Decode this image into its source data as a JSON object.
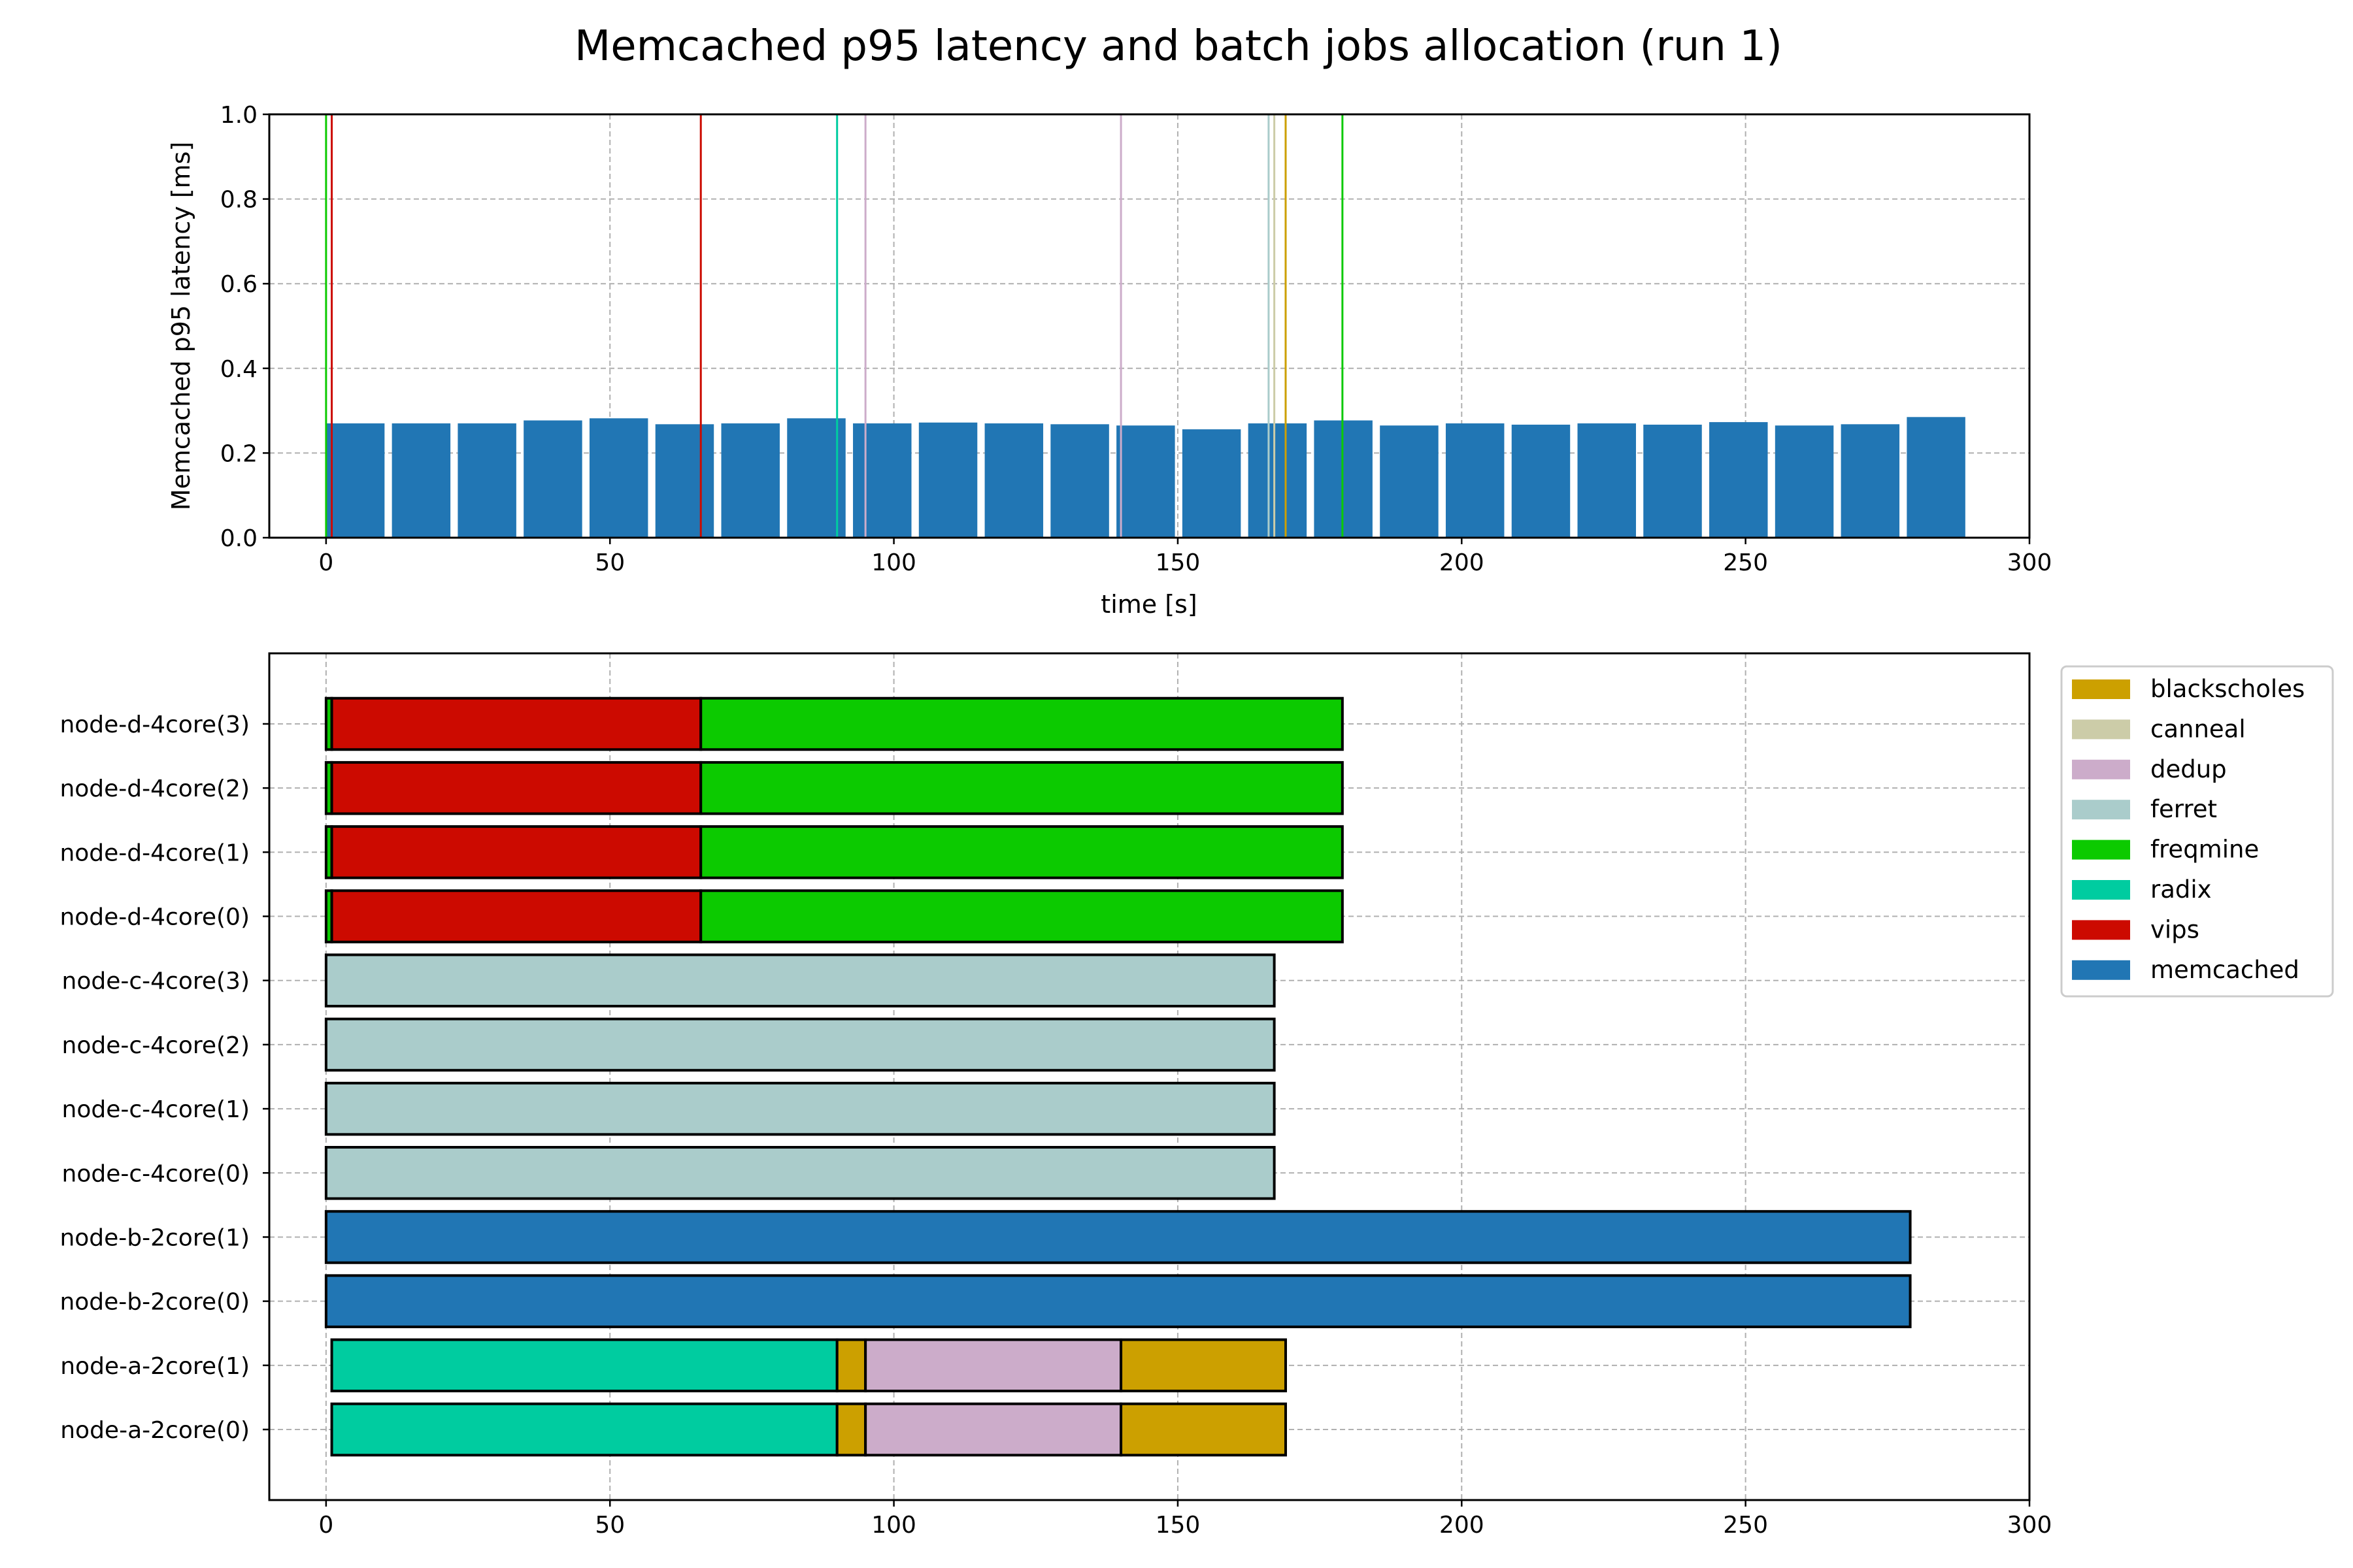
{
  "chart_data": {
    "title": "Memcached p95 latency and batch jobs allocation (run 1)",
    "latency": {
      "type": "bar",
      "xlabel": "time [s]",
      "ylabel": "Memcached p95 latency [ms]",
      "xlim": [
        -10,
        300
      ],
      "ylim": [
        0,
        1.0
      ],
      "xticks": [
        0,
        50,
        100,
        150,
        200,
        250,
        300
      ],
      "yticks": [
        0.0,
        0.2,
        0.4,
        0.6,
        0.8,
        1.0
      ],
      "grid": true,
      "bar_color": "#2176b4",
      "bars": [
        {
          "x": 0,
          "width": 10.3,
          "value": 0.27
        },
        {
          "x": 11.6,
          "width": 10.3,
          "value": 0.27
        },
        {
          "x": 23.2,
          "width": 10.3,
          "value": 0.27
        },
        {
          "x": 34.8,
          "width": 10.3,
          "value": 0.277
        },
        {
          "x": 46.4,
          "width": 10.3,
          "value": 0.282
        },
        {
          "x": 58,
          "width": 10.3,
          "value": 0.268
        },
        {
          "x": 69.6,
          "width": 10.3,
          "value": 0.27
        },
        {
          "x": 81.2,
          "width": 10.3,
          "value": 0.282
        },
        {
          "x": 92.8,
          "width": 10.3,
          "value": 0.27
        },
        {
          "x": 104.4,
          "width": 10.3,
          "value": 0.272
        },
        {
          "x": 116,
          "width": 10.3,
          "value": 0.27
        },
        {
          "x": 127.6,
          "width": 10.3,
          "value": 0.268
        },
        {
          "x": 139.2,
          "width": 10.3,
          "value": 0.265
        },
        {
          "x": 150.8,
          "width": 10.3,
          "value": 0.256
        },
        {
          "x": 162.4,
          "width": 10.3,
          "value": 0.27
        },
        {
          "x": 174,
          "width": 10.3,
          "value": 0.277
        },
        {
          "x": 185.6,
          "width": 10.3,
          "value": 0.265
        },
        {
          "x": 197.2,
          "width": 10.3,
          "value": 0.27
        },
        {
          "x": 208.8,
          "width": 10.3,
          "value": 0.267
        },
        {
          "x": 220.4,
          "width": 10.3,
          "value": 0.27
        },
        {
          "x": 232,
          "width": 10.3,
          "value": 0.267
        },
        {
          "x": 243.6,
          "width": 10.3,
          "value": 0.273
        },
        {
          "x": 255.2,
          "width": 10.3,
          "value": 0.265
        },
        {
          "x": 266.8,
          "width": 10.3,
          "value": 0.268
        },
        {
          "x": 278.4,
          "width": 10.3,
          "value": 0.285
        }
      ],
      "event_lines": [
        {
          "x": 0,
          "job": "freqmine"
        },
        {
          "x": 1,
          "job": "vips"
        },
        {
          "x": 66,
          "job": "vips"
        },
        {
          "x": 90,
          "job": "radix"
        },
        {
          "x": 95,
          "job": "dedup"
        },
        {
          "x": 140,
          "job": "dedup"
        },
        {
          "x": 166,
          "job": "ferret"
        },
        {
          "x": 167,
          "job": "canneal"
        },
        {
          "x": 169,
          "job": "blackscholes"
        },
        {
          "x": 179,
          "job": "freqmine"
        }
      ]
    },
    "allocation": {
      "type": "gantt",
      "xlim": [
        -10,
        300
      ],
      "xticks": [
        0,
        50,
        100,
        150,
        200,
        250,
        300
      ],
      "grid": true,
      "rows": [
        {
          "label": "node-d-4core(3)",
          "segments": [
            {
              "job": "freqmine",
              "start": 0,
              "end": 1
            },
            {
              "job": "vips",
              "start": 1,
              "end": 66
            },
            {
              "job": "freqmine",
              "start": 66,
              "end": 179
            }
          ]
        },
        {
          "label": "node-d-4core(2)",
          "segments": [
            {
              "job": "freqmine",
              "start": 0,
              "end": 1
            },
            {
              "job": "vips",
              "start": 1,
              "end": 66
            },
            {
              "job": "freqmine",
              "start": 66,
              "end": 179
            }
          ]
        },
        {
          "label": "node-d-4core(1)",
          "segments": [
            {
              "job": "freqmine",
              "start": 0,
              "end": 1
            },
            {
              "job": "vips",
              "start": 1,
              "end": 66
            },
            {
              "job": "freqmine",
              "start": 66,
              "end": 179
            }
          ]
        },
        {
          "label": "node-d-4core(0)",
          "segments": [
            {
              "job": "freqmine",
              "start": 0,
              "end": 1
            },
            {
              "job": "vips",
              "start": 1,
              "end": 66
            },
            {
              "job": "freqmine",
              "start": 66,
              "end": 179
            }
          ]
        },
        {
          "label": "node-c-4core(3)",
          "segments": [
            {
              "job": "ferret",
              "start": 0,
              "end": 167
            }
          ]
        },
        {
          "label": "node-c-4core(2)",
          "segments": [
            {
              "job": "ferret",
              "start": 0,
              "end": 167
            }
          ]
        },
        {
          "label": "node-c-4core(1)",
          "segments": [
            {
              "job": "ferret",
              "start": 0,
              "end": 167
            }
          ]
        },
        {
          "label": "node-c-4core(0)",
          "segments": [
            {
              "job": "ferret",
              "start": 0,
              "end": 167
            }
          ]
        },
        {
          "label": "node-b-2core(1)",
          "segments": [
            {
              "job": "memcached",
              "start": 0,
              "end": 279
            }
          ]
        },
        {
          "label": "node-b-2core(0)",
          "segments": [
            {
              "job": "memcached",
              "start": 0,
              "end": 279
            }
          ]
        },
        {
          "label": "node-a-2core(1)",
          "segments": [
            {
              "job": "radix",
              "start": 1,
              "end": 90
            },
            {
              "job": "blackscholes",
              "start": 90,
              "end": 95
            },
            {
              "job": "dedup",
              "start": 95,
              "end": 140
            },
            {
              "job": "blackscholes",
              "start": 140,
              "end": 169
            }
          ]
        },
        {
          "label": "node-a-2core(0)",
          "segments": [
            {
              "job": "radix",
              "start": 1,
              "end": 90
            },
            {
              "job": "blackscholes",
              "start": 90,
              "end": 95
            },
            {
              "job": "dedup",
              "start": 95,
              "end": 140
            },
            {
              "job": "blackscholes",
              "start": 140,
              "end": 169
            }
          ]
        }
      ]
    },
    "legend": {
      "placement": "outside-top-right",
      "entries": [
        {
          "label": "blackscholes",
          "color": "#cca000"
        },
        {
          "label": "canneal",
          "color": "#cccca8"
        },
        {
          "label": "dedup",
          "color": "#ccacca"
        },
        {
          "label": "ferret",
          "color": "#aacccb"
        },
        {
          "label": "freqmine",
          "color": "#0cca00"
        },
        {
          "label": "radix",
          "color": "#00cca0"
        },
        {
          "label": "vips",
          "color": "#cc0a00"
        },
        {
          "label": "memcached",
          "color": "#2176b4"
        }
      ]
    }
  }
}
